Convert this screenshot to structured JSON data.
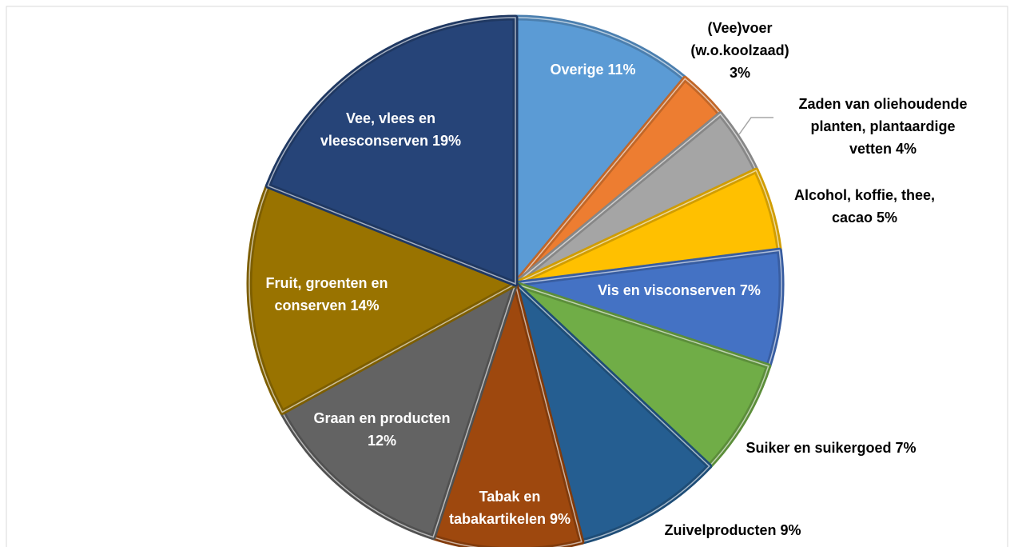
{
  "chart_data": {
    "type": "pie",
    "categories": [
      "Overige",
      "(Vee)voer (w.o.koolzaad)",
      "Zaden van oliehoudende planten, plantaardige vetten",
      "Alcohol, koffie, thee, cacao",
      "Vis en visconserven",
      "Suiker en suikergoed",
      "Zuivelproducten",
      "Tabak en tabakartikelen",
      "Graan en producten",
      "Fruit, groenten en conserven",
      "Vee, vlees en vleesconserven"
    ],
    "values": [
      11,
      3,
      4,
      5,
      7,
      7,
      9,
      9,
      12,
      14,
      19
    ],
    "value_labels": [
      "11%",
      "3%",
      "4%",
      "5%",
      "7%",
      "7%",
      "9%",
      "9%",
      "12%",
      "14%",
      "19%"
    ],
    "colors": [
      "#5b9bd5",
      "#ed7d31",
      "#a5a5a5",
      "#ffc000",
      "#4472c4",
      "#70ad47",
      "#255e91",
      "#9e480e",
      "#636363",
      "#997300",
      "#264478"
    ]
  }
}
